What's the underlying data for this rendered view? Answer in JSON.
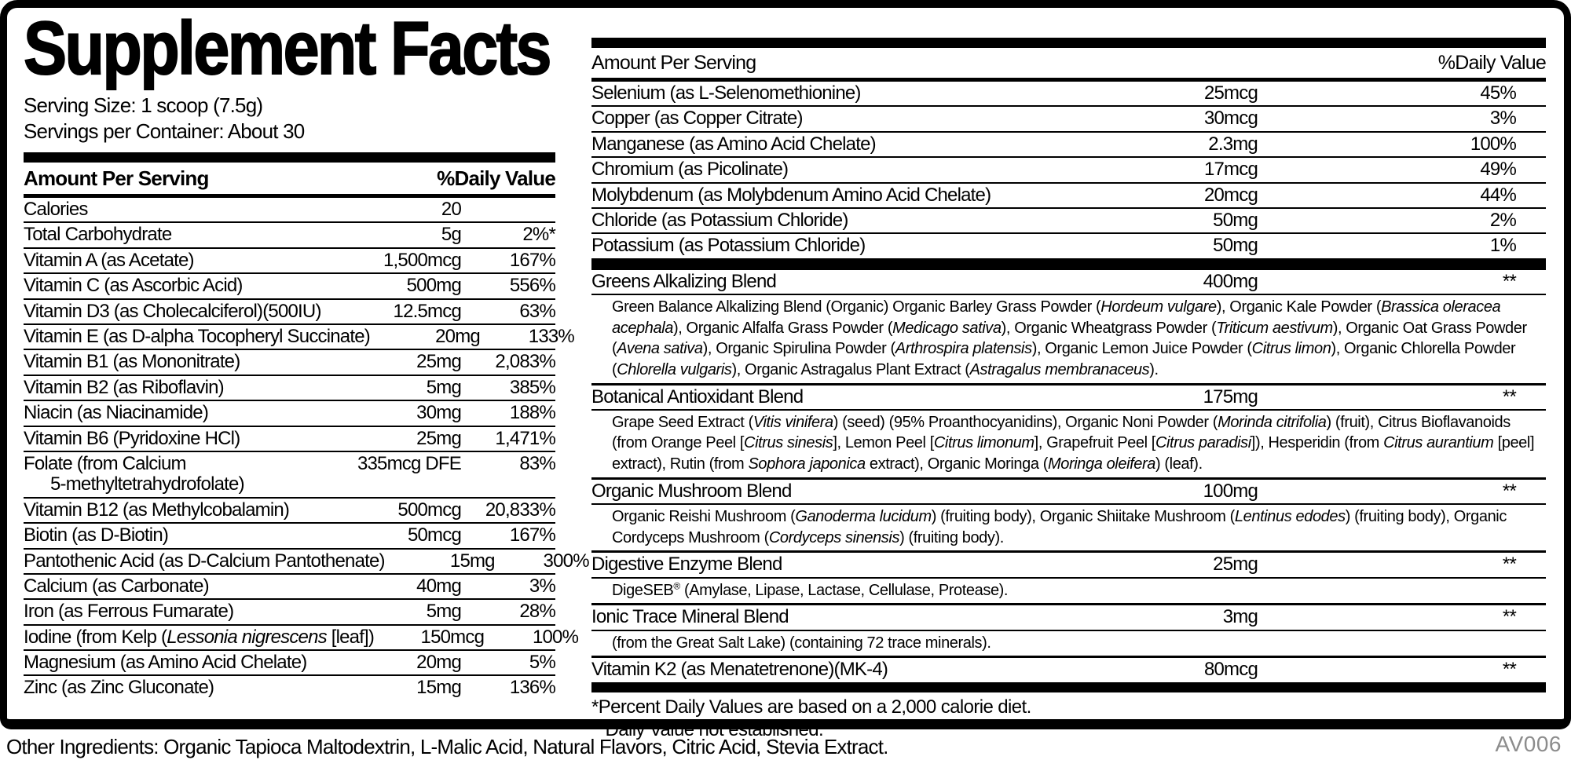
{
  "title": "Supplement Facts",
  "serving_size": "Serving Size: 1 scoop (7.5g)",
  "servings_per_container": "Servings per Container: About 30",
  "left_table": {
    "header": {
      "amount_label": "Amount Per Serving",
      "dv_label": "%Daily Value"
    },
    "rows": [
      {
        "name": "Calories",
        "amount": "20",
        "dv": ""
      },
      {
        "name": "Total Carbohydrate",
        "amount": "5g",
        "dv": "2%*"
      },
      {
        "name": "Vitamin A (as Acetate)",
        "amount": "1,500mcg",
        "dv": "167%"
      },
      {
        "name": "Vitamin C (as Ascorbic Acid)",
        "amount": "500mg",
        "dv": "556%"
      },
      {
        "name": "Vitamin D3 (as Cholecalciferol)(500IU)",
        "amount": "12.5mcg",
        "dv": "63%"
      },
      {
        "name": "Vitamin E (as D-alpha Tocopheryl Succinate)",
        "amount": "20mg",
        "dv": "133%"
      },
      {
        "name": "Vitamin B1 (as Mononitrate)",
        "amount": "25mg",
        "dv": "2,083%"
      },
      {
        "name": "Vitamin B2 (as Riboflavin)",
        "amount": "5mg",
        "dv": "385%"
      },
      {
        "name": "Niacin (as Niacinamide)",
        "amount": "30mg",
        "dv": "188%"
      },
      {
        "name": "Vitamin B6 (Pyridoxine HCl)",
        "amount": "25mg",
        "dv": "1,471%"
      },
      {
        "name": "Folate (from Calcium",
        "name_line2": "5-methyltetrahydrofolate)",
        "amount": "335mcg DFE",
        "dv": "83%"
      },
      {
        "name": "Vitamin B12 (as Methylcobalamin)",
        "amount": "500mcg",
        "dv": "20,833%"
      },
      {
        "name": "Biotin (as D-Biotin)",
        "amount": "50mcg",
        "dv": "167%"
      },
      {
        "name": "Pantothenic Acid (as D-Calcium Pantothenate)",
        "amount": "15mg",
        "dv": "300%"
      },
      {
        "name": "Calcium (as Carbonate)",
        "amount": "40mg",
        "dv": "3%"
      },
      {
        "name": "Iron (as Ferrous Fumarate)",
        "amount": "5mg",
        "dv": "28%"
      },
      {
        "name": [
          {
            "t": "Iodine (from Kelp ("
          },
          {
            "t": "Lessonia nigrescens",
            "i": true
          },
          {
            "t": " [leaf])"
          }
        ],
        "amount": "150mcg",
        "dv": "100%"
      },
      {
        "name": "Magnesium (as Amino Acid Chelate)",
        "amount": "20mg",
        "dv": "5%"
      },
      {
        "name": "Zinc (as Zinc Gluconate)",
        "amount": "15mg",
        "dv": "136%"
      }
    ]
  },
  "right_table": {
    "header": {
      "amount_label": "Amount Per Serving",
      "dv_label": "%Daily Value"
    },
    "rows": [
      {
        "name": "Selenium (as L-Selenomethionine)",
        "amount": "25mcg",
        "dv": "45%"
      },
      {
        "name": "Copper (as Copper Citrate)",
        "amount": "30mcg",
        "dv": "3%"
      },
      {
        "name": "Manganese (as Amino Acid Chelate)",
        "amount": "2.3mg",
        "dv": "100%"
      },
      {
        "name": "Chromium (as Picolinate)",
        "amount": "17mcg",
        "dv": "49%"
      },
      {
        "name": "Molybdenum (as Molybdenum Amino Acid Chelate)",
        "amount": "20mcg",
        "dv": "44%"
      },
      {
        "name": "Chloride (as Potassium Chloride)",
        "amount": "50mg",
        "dv": "2%"
      },
      {
        "name": "Potassium (as Potassium Chloride)",
        "amount": "50mg",
        "dv": "1%"
      }
    ],
    "blends": [
      {
        "name": "Greens Alkalizing Blend",
        "amount": "400mg",
        "dv": "**",
        "desc": [
          {
            "t": "Green Balance Alkalizing Blend (Organic) Organic Barley Grass Powder ("
          },
          {
            "t": "Hordeum vulgare",
            "i": true
          },
          {
            "t": "), Organic Kale Powder ("
          },
          {
            "t": "Brassica oleracea acephala",
            "i": true
          },
          {
            "t": "), Organic Alfalfa Grass Powder ("
          },
          {
            "t": "Medicago sativa",
            "i": true
          },
          {
            "t": "), Organic Wheatgrass Powder ("
          },
          {
            "t": "Triticum aestivum",
            "i": true
          },
          {
            "t": "), Organic Oat Grass Powder ("
          },
          {
            "t": "Avena sativa",
            "i": true
          },
          {
            "t": "), Organic Spirulina Powder ("
          },
          {
            "t": "Arthrospira platensis",
            "i": true
          },
          {
            "t": "), Organic Lemon Juice Powder ("
          },
          {
            "t": "Citrus limon",
            "i": true
          },
          {
            "t": "), Organic Chlorella Powder ("
          },
          {
            "t": "Chlorella vulgaris",
            "i": true
          },
          {
            "t": "), Organic Astragalus Plant Extract ("
          },
          {
            "t": "Astragalus membranaceus",
            "i": true
          },
          {
            "t": ")."
          }
        ]
      },
      {
        "name": "Botanical Antioxidant Blend",
        "amount": "175mg",
        "dv": "**",
        "desc": [
          {
            "t": "Grape Seed Extract ("
          },
          {
            "t": "Vitis vinifera",
            "i": true
          },
          {
            "t": ") (seed) (95% Proanthocyanidins), Organic Noni Powder ("
          },
          {
            "t": "Morinda citrifolia",
            "i": true
          },
          {
            "t": ") (fruit), Citrus Bioflavanoids (from Orange Peel ["
          },
          {
            "t": "Citrus sinesis",
            "i": true
          },
          {
            "t": "], Lemon Peel ["
          },
          {
            "t": "Citrus limonum",
            "i": true
          },
          {
            "t": "], Grapefruit Peel ["
          },
          {
            "t": "Citrus paradisi",
            "i": true
          },
          {
            "t": "]), Hesperidin (from "
          },
          {
            "t": "Citrus aurantium",
            "i": true
          },
          {
            "t": " [peel] extract), Rutin (from "
          },
          {
            "t": "Sophora japonica",
            "i": true
          },
          {
            "t": " extract), Organic Moringa ("
          },
          {
            "t": "Moringa oleifera",
            "i": true
          },
          {
            "t": ") (leaf)."
          }
        ]
      },
      {
        "name": "Organic Mushroom Blend",
        "amount": "100mg",
        "dv": "**",
        "desc": [
          {
            "t": "Organic Reishi Mushroom ("
          },
          {
            "t": "Ganoderma lucidum",
            "i": true
          },
          {
            "t": ") (fruiting body), Organic Shiitake Mushroom ("
          },
          {
            "t": "Lentinus edodes",
            "i": true
          },
          {
            "t": ") (fruiting body), Organic Cordyceps Mushroom ("
          },
          {
            "t": "Cordyceps sinensis",
            "i": true
          },
          {
            "t": ") (fruiting body)."
          }
        ]
      },
      {
        "name": "Digestive Enzyme Blend",
        "amount": "25mg",
        "dv": "**",
        "desc": [
          {
            "t": "DigeSEB"
          },
          {
            "t": "®",
            "s": true
          },
          {
            "t": " (Amylase, Lipase, Lactase, Cellulase, Protease)."
          }
        ]
      },
      {
        "name": "Ionic Trace Mineral Blend",
        "amount": "3mg",
        "dv": "**",
        "desc": [
          {
            "t": "(from the Great Salt Lake) (containing 72 trace minerals)."
          }
        ]
      },
      {
        "name": "Vitamin K2 (as Menatetrenone)(MK-4)",
        "amount": "80mcg",
        "dv": "**"
      }
    ]
  },
  "footnotes": [
    "*Percent Daily Values are based on a 2,000 calorie diet.",
    "**Daily Value not established."
  ],
  "footer": {
    "other_ingredients": "Other Ingredients: Organic Tapioca Maltodextrin, L-Malic Acid, Natural Flavors, Citric Acid, Stevia Extract.",
    "code": "AV006"
  },
  "colors": {
    "text": "#000000",
    "background": "#ffffff",
    "code_gray": "#8c8c8c"
  }
}
